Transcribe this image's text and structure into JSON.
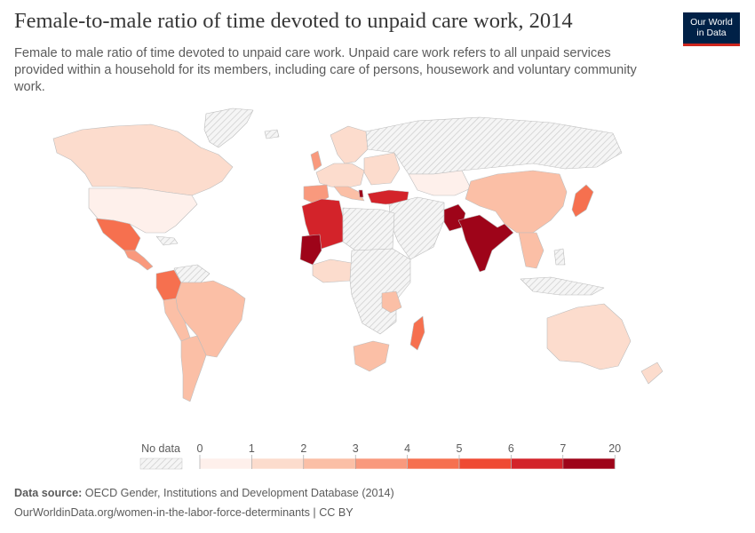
{
  "header": {
    "title": "Female-to-male ratio of time devoted to unpaid care work, 2014",
    "subtitle": "Female to male ratio of time devoted to unpaid care work. Unpaid care work refers to all unpaid services provided within a household for its members, including care of persons, housework and voluntary community work."
  },
  "logo": {
    "line1": "Our World",
    "line2": "in Data"
  },
  "legend": {
    "no_data_label": "No data",
    "ticks": [
      "0",
      "1",
      "2",
      "3",
      "4",
      "5",
      "6",
      "7",
      "20"
    ],
    "colors": [
      "#fef0eb",
      "#fcdccd",
      "#fbbfa6",
      "#f9997d",
      "#f6704f",
      "#ef4a33",
      "#d3232a",
      "#9e0419"
    ]
  },
  "map_colors": {
    "no_data_fill": "#f4f4f4",
    "no_data_hatch": "#d4d4d4",
    "border": "#c8c8c8"
  },
  "footer": {
    "source_label": "Data source:",
    "source_text": "OECD Gender, Institutions and Development Database (2014)",
    "url": "OurWorldinData.org/women-in-the-labor-force-determinants | CC BY"
  }
}
